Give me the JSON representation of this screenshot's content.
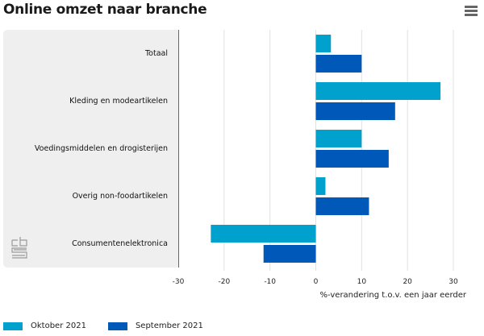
{
  "header": {
    "title": "Online omzet naar branche",
    "menu_icon": "hamburger-menu-icon"
  },
  "logo": {
    "icon": "cbs-logo-icon"
  },
  "colors": {
    "oktober": "#00a1cd",
    "september": "#0058b8",
    "grid": "#e1e1e1",
    "panel": "#efefef"
  },
  "chart_data": {
    "type": "bar",
    "orientation": "horizontal",
    "title": "Online omzet naar branche",
    "categories": [
      "Totaal",
      "Kleding en modeartikelen",
      "Voedingsmiddelen en drogisterijen",
      "Overig non-foodartikelen",
      "Consumentenelektronica"
    ],
    "series": [
      {
        "name": "Oktober 2021",
        "color": "#00a1cd",
        "values": [
          3.3,
          27.2,
          10.0,
          2.1,
          -22.9
        ]
      },
      {
        "name": "September 2021",
        "color": "#0058b8",
        "values": [
          10.0,
          17.3,
          15.9,
          11.6,
          -11.4
        ]
      }
    ],
    "xlabel": "%-verandering t.o.v. een jaar eerder",
    "ylabel": "",
    "xlim": [
      -30,
      30
    ],
    "xticks": [
      "-30",
      "-20",
      "-10",
      "0",
      "10",
      "20",
      "30"
    ],
    "grid": true,
    "legend_position": "bottom-left"
  },
  "legend": [
    {
      "label": "Oktober 2021"
    },
    {
      "label": "September 2021"
    }
  ]
}
